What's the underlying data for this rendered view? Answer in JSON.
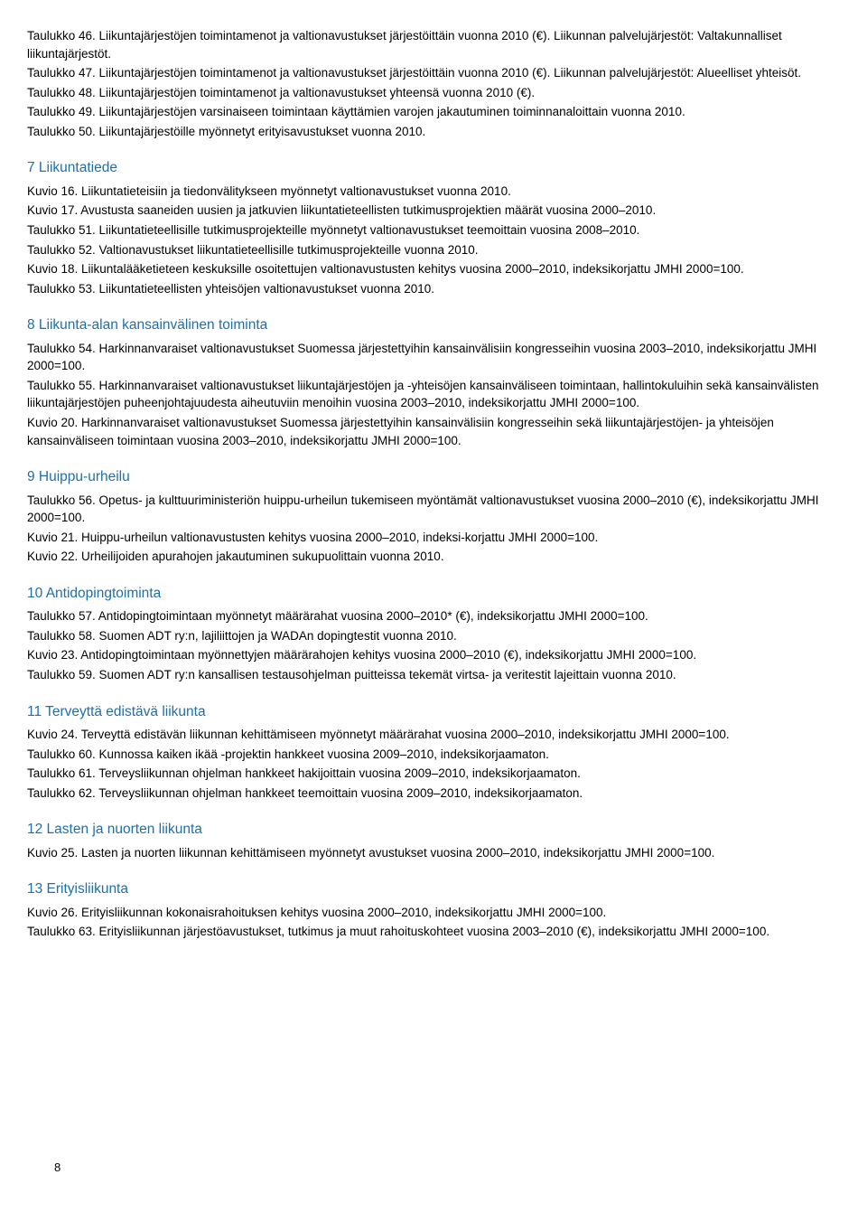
{
  "intro": [
    "Taulukko 46. Liikuntajärjestöjen toimintamenot ja valtionavustukset järjestöittäin vuonna 2010 (€). Liikunnan palvelujärjestöt: Valtakunnalliset liikuntajärjestöt.",
    "Taulukko 47. Liikuntajärjestöjen toimintamenot ja valtionavustukset järjestöittäin vuonna 2010 (€). Liikunnan palvelujärjestöt: Alueelliset yhteisöt.",
    "Taulukko 48. Liikuntajärjestöjen toimintamenot ja valtionavustukset yhteensä vuonna 2010 (€).",
    "Taulukko 49. Liikuntajärjestöjen varsinaiseen toimintaan käyttämien varojen jakautuminen toiminnanaloittain vuonna 2010.",
    "Taulukko 50. Liikuntajärjestöille myönnetyt erityisavustukset vuonna 2010."
  ],
  "sections": [
    {
      "heading": "7 Liikuntatiede",
      "items": [
        "Kuvio 16. Liikuntatieteisiin ja tiedonvälitykseen myönnetyt valtionavustukset vuonna 2010.",
        "Kuvio 17. Avustusta saaneiden uusien ja jatkuvien liikuntatieteellisten tutkimusprojektien määrät vuosina 2000–2010.",
        "Taulukko 51. Liikuntatieteellisille tutkimusprojekteille myönnetyt valtionavustukset teemoittain vuosina 2008–2010.",
        "Taulukko 52. Valtionavustukset liikuntatieteellisille tutkimusprojekteille vuonna 2010.",
        "Kuvio 18. Liikuntalääketieteen keskuksille osoitettujen valtionavustusten kehitys vuosina 2000–2010, indeksikorjattu JMHI 2000=100.",
        "Taulukko 53. Liikuntatieteellisten yhteisöjen valtionavustukset vuonna 2010."
      ]
    },
    {
      "heading": "8 Liikunta-alan kansainvälinen toiminta",
      "items": [
        "Taulukko 54. Harkinnanvaraiset valtionavustukset Suomessa järjestettyihin kansainvälisiin kongresseihin vuosina 2003–2010, indeksikorjattu JMHI 2000=100.",
        "Taulukko 55. Harkinnanvaraiset valtionavustukset liikuntajärjestöjen ja -yhteisöjen kansainväliseen toimintaan, hallintokuluihin sekä kansainvälisten liikuntajärjestöjen puheenjohtajuudesta aiheutuviin menoihin vuosina 2003–2010, indeksikorjattu JMHI 2000=100.",
        "Kuvio 20. Harkinnanvaraiset valtionavustukset Suomessa järjestettyihin kansainvälisiin kongresseihin sekä liikuntajärjestöjen- ja yhteisöjen kansainväliseen toimintaan vuosina 2003–2010, indeksikorjattu JMHI 2000=100."
      ]
    },
    {
      "heading": "9 Huippu-urheilu",
      "items": [
        "Taulukko 56. Opetus- ja kulttuuriministeriön huippu-urheilun tukemiseen myöntämät valtionavustukset vuosina 2000–2010 (€), indeksikorjattu JMHI 2000=100.",
        "Kuvio 21. Huippu-urheilun valtionavustusten kehitys vuosina 2000–2010, indeksi-korjattu JMHI 2000=100.",
        "Kuvio 22. Urheilijoiden apurahojen jakautuminen sukupuolittain vuonna 2010."
      ]
    },
    {
      "heading": "10 Antidopingtoiminta",
      "items": [
        "Taulukko 57. Antidopingtoimintaan myönnetyt määrärahat vuosina 2000–2010* (€), indeksikorjattu JMHI 2000=100.",
        "Taulukko 58. Suomen ADT ry:n, lajiliittojen ja WADAn dopingtestit vuonna 2010.",
        "Kuvio 23. Antidopingtoimintaan myönnettyjen määrärahojen kehitys vuosina 2000–2010 (€), indeksikorjattu JMHI 2000=100.",
        "Taulukko 59. Suomen ADT ry:n kansallisen testausohjelman puitteissa tekemät virtsa- ja veritestit lajeittain vuonna 2010."
      ]
    },
    {
      "heading": "11 Terveyttä edistävä liikunta",
      "items": [
        "Kuvio 24. Terveyttä edistävän liikunnan kehittämiseen myönnetyt määrärahat vuosina 2000–2010, indeksikorjattu JMHI 2000=100.",
        "Taulukko 60. Kunnossa kaiken ikää -projektin hankkeet vuosina 2009–2010, indeksikorjaamaton.",
        "Taulukko 61. Terveysliikunnan ohjelman hankkeet hakijoittain vuosina 2009–2010, indeksikorjaamaton.",
        "Taulukko 62. Terveysliikunnan ohjelman hankkeet teemoittain vuosina 2009–2010, indeksikorjaamaton."
      ]
    },
    {
      "heading": "12 Lasten ja nuorten liikunta",
      "items": [
        "Kuvio 25. Lasten ja nuorten liikunnan kehittämiseen myönnetyt avustukset vuosina 2000–2010, indeksikorjattu JMHI 2000=100."
      ]
    },
    {
      "heading": "13 Erityisliikunta",
      "items": [
        "Kuvio 26. Erityisliikunnan kokonaisrahoituksen kehitys vuosina 2000–2010, indeksikorjattu JMHI 2000=100.",
        "Taulukko 63. Erityisliikunnan järjestöavustukset, tutkimus ja muut rahoituskohteet vuosina 2003–2010 (€), indeksikorjattu JMHI 2000=100."
      ]
    }
  ],
  "pageNumber": "8"
}
